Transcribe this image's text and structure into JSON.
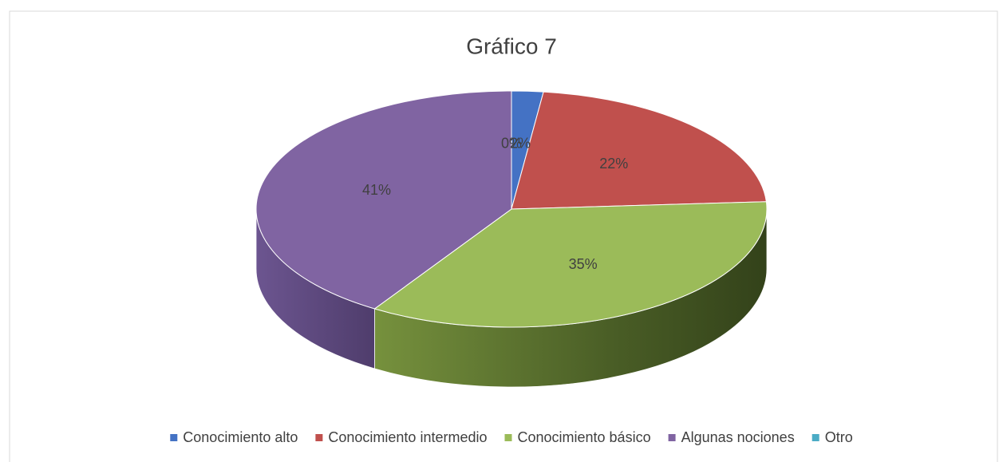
{
  "chart_data": {
    "type": "pie",
    "title": "Gráfico 7",
    "categories": [
      "Conocimiento alto",
      "Conocimiento intermedio",
      "Conocimiento básico",
      "Algunas nociones",
      "Otro"
    ],
    "values": [
      2,
      22,
      35,
      41,
      0
    ],
    "value_labels": [
      "2%",
      "22%",
      "35%",
      "41%",
      "0%"
    ],
    "colors": [
      "#4472c4",
      "#c0504d",
      "#9bbb59",
      "#8064a2",
      "#4bacc6"
    ],
    "legend": "bottom"
  }
}
